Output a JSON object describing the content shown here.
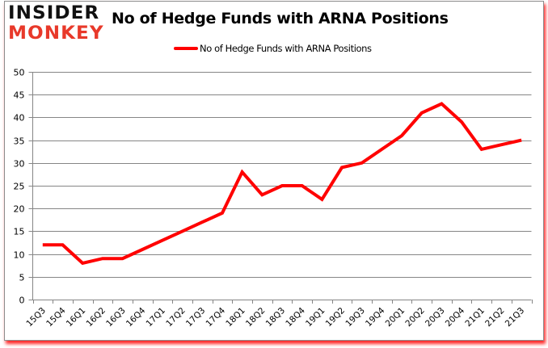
{
  "logo": {
    "line1": "INSIDER",
    "line2": "MONKEY"
  },
  "colors": {
    "series": "#ff0000",
    "grid": "#868686",
    "logo_red": "#e8392a",
    "shadow": "#ff0000"
  },
  "chart_data": {
    "type": "line",
    "title": "No of Hedge Funds with ARNA Positions",
    "xlabel": "",
    "ylabel": "",
    "ylim": [
      0,
      50
    ],
    "yticks": [
      0,
      5,
      10,
      15,
      20,
      25,
      30,
      35,
      40,
      45,
      50
    ],
    "grid": true,
    "legend_position": "top",
    "categories": [
      "15Q3",
      "15Q4",
      "16Q1",
      "16Q2",
      "16Q3",
      "16Q4",
      "17Q1",
      "17Q2",
      "17Q3",
      "17Q4",
      "18Q1",
      "18Q2",
      "18Q3",
      "18Q4",
      "19Q1",
      "19Q2",
      "19Q3",
      "19Q4",
      "20Q1",
      "20Q2",
      "20Q3",
      "20Q4",
      "21Q1",
      "21Q2",
      "21Q3"
    ],
    "series": [
      {
        "name": "No of Hedge Funds with ARNA Positions",
        "values": [
          12,
          12,
          8,
          9,
          9,
          11,
          13,
          15,
          17,
          19,
          28,
          23,
          25,
          25,
          22,
          29,
          30,
          33,
          36,
          41,
          43,
          39,
          33,
          34,
          35
        ]
      }
    ]
  }
}
